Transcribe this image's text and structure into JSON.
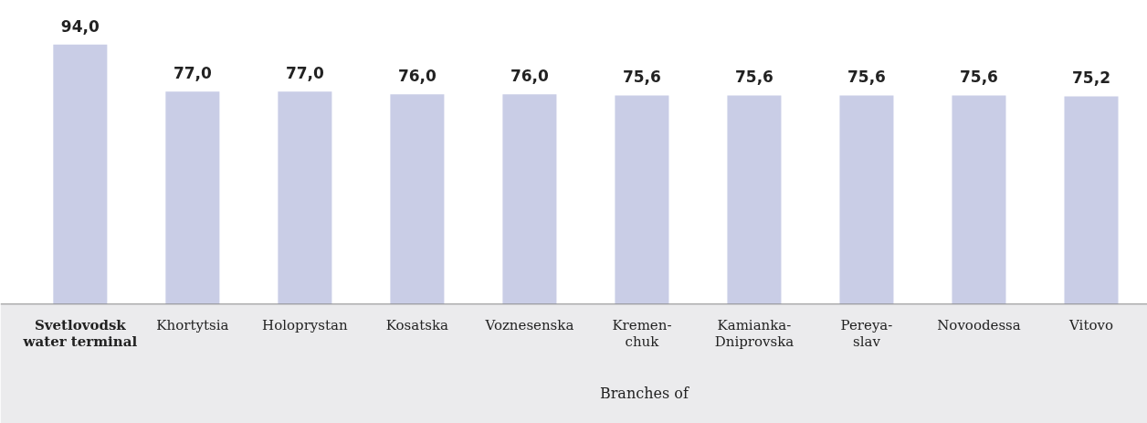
{
  "chart_data": {
    "type": "bar",
    "categories": [
      "Svetlovodsk\nwater terminal",
      "Khortytsia",
      "Holoprystan",
      "Kosatska",
      "Voznesenska",
      "Kremen-\nchuk",
      "Kamianka-\nDniprovska",
      "Pereya-\nslav",
      "Novoodessa",
      "Vitovo"
    ],
    "values": [
      94.0,
      77.0,
      77.0,
      76.0,
      76.0,
      75.6,
      75.6,
      75.6,
      75.6,
      75.2
    ],
    "value_labels": [
      "94,0",
      "77,0",
      "77,0",
      "76,0",
      "76,0",
      "75,6",
      "75,6",
      "75,6",
      "75,6",
      "75,2"
    ],
    "color": "#c9cde6",
    "annotations": [
      "Branches of"
    ]
  }
}
